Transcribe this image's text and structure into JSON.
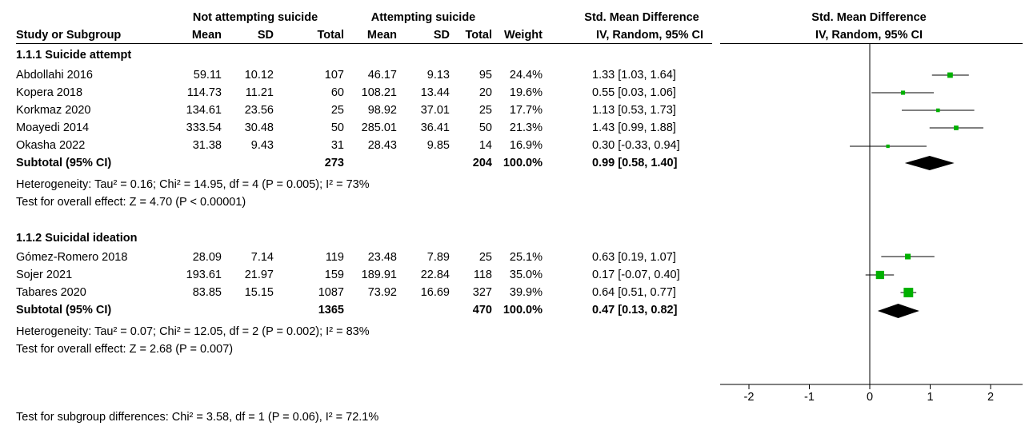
{
  "header": {
    "group1_label": "Not attempting suicide",
    "group2_label": "Attempting suicide",
    "effect_label": "Std. Mean Difference",
    "plot_label": "Std. Mean Difference",
    "col_study": "Study or Subgroup",
    "col_mean1": "Mean",
    "col_sd1": "SD",
    "col_total1": "Total",
    "col_mean2": "Mean",
    "col_sd2": "SD",
    "col_total2": "Total",
    "col_weight": "Weight",
    "col_ci": "IV, Random, 95% CI",
    "plot_sub_label": "IV, Random, 95% CI"
  },
  "rows": [
    {
      "text": "1.1.1 Suicide attempt"
    },
    {
      "study": "Abdollahi 2016",
      "mean1": "59.11",
      "sd1": "10.12",
      "total1": "107",
      "mean2": "46.17",
      "sd2": "9.13",
      "total2": "95",
      "weight": "24.4%",
      "ci": "1.33 [1.03, 1.64]"
    },
    {
      "study": "Kopera 2018",
      "mean1": "114.73",
      "sd1": "11.21",
      "total1": "60",
      "mean2": "108.21",
      "sd2": "13.44",
      "total2": "20",
      "weight": "19.6%",
      "ci": "0.55 [0.03, 1.06]"
    },
    {
      "study": "Korkmaz 2020",
      "mean1": "134.61",
      "sd1": "23.56",
      "total1": "25",
      "mean2": "98.92",
      "sd2": "37.01",
      "total2": "25",
      "weight": "17.7%",
      "ci": "1.13 [0.53, 1.73]"
    },
    {
      "study": "Moayedi 2014",
      "mean1": "333.54",
      "sd1": "30.48",
      "total1": "50",
      "mean2": "285.01",
      "sd2": "36.41",
      "total2": "50",
      "weight": "21.3%",
      "ci": "1.43 [0.99, 1.88]"
    },
    {
      "study": "Okasha 2022",
      "mean1": "31.38",
      "sd1": "9.43",
      "total1": "31",
      "mean2": "28.43",
      "sd2": "9.85",
      "total2": "14",
      "weight": "16.9%",
      "ci": "0.30 [-0.33, 0.94]"
    },
    {
      "study": "Subtotal (95% CI)",
      "total1": "273",
      "total2": "204",
      "weight": "100.0%",
      "ci": "0.99 [0.58, 1.40]"
    },
    {
      "text": "Heterogeneity: Tau² = 0.16; Chi² = 14.95, df = 4 (P = 0.005); I² = 73%"
    },
    {
      "text": "Test for overall effect: Z = 4.70 (P < 0.00001)"
    },
    {
      "text": "1.1.2 Suicidal ideation"
    },
    {
      "study": "Gómez-Romero 2018",
      "mean1": "28.09",
      "sd1": "7.14",
      "total1": "119",
      "mean2": "23.48",
      "sd2": "7.89",
      "total2": "25",
      "weight": "25.1%",
      "ci": "0.63 [0.19, 1.07]"
    },
    {
      "study": "Sojer 2021",
      "mean1": "193.61",
      "sd1": "21.97",
      "total1": "159",
      "mean2": "189.91",
      "sd2": "22.84",
      "total2": "118",
      "weight": "35.0%",
      "ci": "0.17 [-0.07, 0.40]"
    },
    {
      "study": "Tabares 2020",
      "mean1": "83.85",
      "sd1": "15.15",
      "total1": "1087",
      "mean2": "73.92",
      "sd2": "16.69",
      "total2": "327",
      "weight": "39.9%",
      "ci": "0.64 [0.51, 0.77]"
    },
    {
      "study": "Subtotal (95% CI)",
      "total1": "1365",
      "total2": "470",
      "weight": "100.0%",
      "ci": "0.47 [0.13, 0.82]"
    },
    {
      "text": "Heterogeneity: Tau² = 0.07; Chi² = 12.05, df = 2 (P = 0.002); I² = 83%"
    },
    {
      "text": "Test for overall effect: Z = 2.68 (P = 0.007)"
    }
  ],
  "footer": {
    "subgroup_test": "Test for subgroup differences: Chi² = 3.58, df = 1 (P = 0.06), I² = 72.1%"
  },
  "colors": {
    "marker": "#00b000",
    "diamond": "#000000"
  },
  "chart_data": {
    "type": "forest",
    "xlim": [
      -2.5,
      2.5
    ],
    "ticks": [
      "-2",
      "-1",
      "0",
      "1",
      "2"
    ],
    "tick_values": [
      -2,
      -1,
      0,
      1,
      2
    ],
    "null_line": 0,
    "studies": [
      {
        "name": "Abdollahi 2016",
        "est": 1.33,
        "lo": 1.03,
        "hi": 1.64,
        "weight": 24.4
      },
      {
        "name": "Kopera 2018",
        "est": 0.55,
        "lo": 0.03,
        "hi": 1.06,
        "weight": 19.6
      },
      {
        "name": "Korkmaz 2020",
        "est": 1.13,
        "lo": 0.53,
        "hi": 1.73,
        "weight": 17.7
      },
      {
        "name": "Moayedi 2014",
        "est": 1.43,
        "lo": 0.99,
        "hi": 1.88,
        "weight": 21.3
      },
      {
        "name": "Okasha 2022",
        "est": 0.3,
        "lo": -0.33,
        "hi": 0.94,
        "weight": 16.9
      },
      {
        "name": "Gómez-Romero 2018",
        "est": 0.63,
        "lo": 0.19,
        "hi": 1.07,
        "weight": 25.1
      },
      {
        "name": "Sojer 2021",
        "est": 0.17,
        "lo": -0.07,
        "hi": 0.4,
        "weight": 35.0
      },
      {
        "name": "Tabares 2020",
        "est": 0.64,
        "lo": 0.51,
        "hi": 0.77,
        "weight": 39.9
      }
    ],
    "subtotals": [
      {
        "name": "Subtotal 1.1.1",
        "est": 0.99,
        "lo": 0.58,
        "hi": 1.4
      },
      {
        "name": "Subtotal 1.1.2",
        "est": 0.47,
        "lo": 0.13,
        "hi": 0.82
      }
    ]
  }
}
